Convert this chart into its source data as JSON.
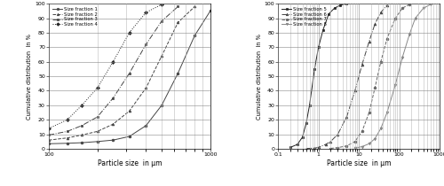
{
  "left": {
    "xlabel": "Particle size  in µm",
    "ylabel": "Cumulative distribution  in %",
    "xlim": [
      100,
      1000
    ],
    "ylim": [
      0,
      100
    ],
    "series": [
      {
        "label": "Size fraction 1",
        "marker": "o",
        "linestyle": "-",
        "color": "#444444",
        "markersize": 2.0,
        "x": [
          100,
          130,
          160,
          200,
          250,
          315,
          400,
          500,
          630,
          800,
          1000
        ],
        "y": [
          3.5,
          3.8,
          4.2,
          5.0,
          6.0,
          8.5,
          16.0,
          30.0,
          52.0,
          78.0,
          95.0
        ]
      },
      {
        "label": "Size fraction 2",
        "marker": "^",
        "linestyle": "--",
        "color": "#444444",
        "markersize": 2.0,
        "x": [
          100,
          130,
          160,
          200,
          250,
          315,
          400,
          500,
          630,
          800
        ],
        "y": [
          6.0,
          7.5,
          9.5,
          12.0,
          17.0,
          26.0,
          42.0,
          64.0,
          87.0,
          98.0
        ]
      },
      {
        "label": "Size fraction 3",
        "marker": "s",
        "linestyle": "-.",
        "color": "#444444",
        "markersize": 2.0,
        "x": [
          100,
          130,
          160,
          200,
          250,
          315,
          400,
          500,
          630
        ],
        "y": [
          9.5,
          12.0,
          16.0,
          22.0,
          35.0,
          52.0,
          72.0,
          88.0,
          98.0
        ]
      },
      {
        "label": "Size fraction 4",
        "marker": "D",
        "linestyle": ":",
        "color": "#222222",
        "markersize": 2.0,
        "x": [
          100,
          130,
          160,
          200,
          250,
          315,
          400,
          500
        ],
        "y": [
          14.0,
          20.0,
          30.0,
          42.0,
          60.0,
          80.0,
          94.0,
          99.5
        ]
      }
    ]
  },
  "right": {
    "xlabel": "Particle size  in µm",
    "ylabel": "Cumulative distribution  in %",
    "xlim": [
      0.1,
      1000
    ],
    "ylim": [
      0,
      100
    ],
    "series": [
      {
        "label": "Size fraction 5",
        "marker": "s",
        "linestyle": "-",
        "color": "#222222",
        "markersize": 2.0,
        "x": [
          0.2,
          0.3,
          0.4,
          0.5,
          0.6,
          0.8,
          1.0,
          1.3,
          1.8,
          2.5,
          3.5,
          5.0
        ],
        "y": [
          1.0,
          3.0,
          8.0,
          18.0,
          30.0,
          55.0,
          70.0,
          82.0,
          93.0,
          97.0,
          99.0,
          100.0
        ]
      },
      {
        "label": "Size fraction 6",
        "marker": "^",
        "linestyle": "-.",
        "color": "#444444",
        "markersize": 2.0,
        "x": [
          0.5,
          0.8,
          1.0,
          1.5,
          2.0,
          3.0,
          5.0,
          8.0,
          12.0,
          18.0,
          25.0,
          35.0,
          50.0
        ],
        "y": [
          0.2,
          0.5,
          1.0,
          3.0,
          5.0,
          10.0,
          22.0,
          40.0,
          58.0,
          74.0,
          86.0,
          94.0,
          99.0
        ]
      },
      {
        "label": "Size fraction 7",
        "marker": "o",
        "linestyle": "--",
        "color": "#666666",
        "markersize": 2.0,
        "x": [
          2.0,
          3.0,
          5.0,
          8.0,
          12.0,
          18.0,
          25.0,
          35.0,
          50.0,
          80.0,
          120.0,
          180.0
        ],
        "y": [
          0.3,
          0.8,
          2.0,
          5.0,
          12.0,
          25.0,
          42.0,
          60.0,
          76.0,
          90.0,
          97.0,
          99.5
        ]
      },
      {
        "label": "Size fraction 8",
        "marker": "v",
        "linestyle": "-",
        "color": "#888888",
        "markersize": 2.0,
        "x": [
          8.0,
          12.0,
          18.0,
          25.0,
          35.0,
          50.0,
          80.0,
          120.0,
          180.0,
          250.0,
          400.0,
          600.0
        ],
        "y": [
          0.5,
          1.5,
          3.5,
          7.0,
          14.0,
          25.0,
          44.0,
          63.0,
          79.0,
          90.0,
          97.0,
          99.5
        ]
      }
    ]
  }
}
